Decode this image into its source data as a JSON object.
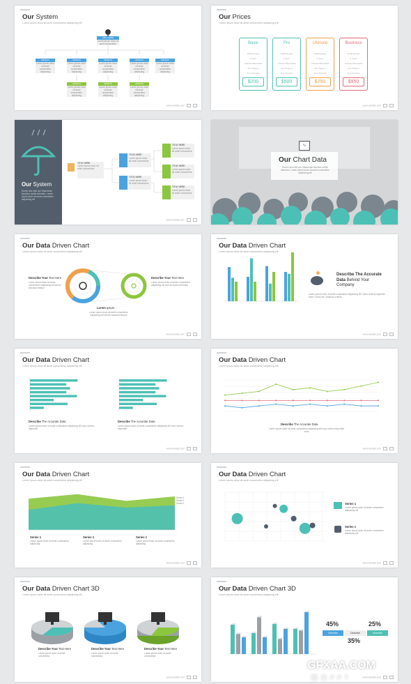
{
  "slides": {
    "s1": {
      "title_bold": "Our",
      "title_light": " System",
      "subtitle": "Lorem ipsum dolor sit amet consectetur adipiscing elit",
      "top_label": "CEO NAME",
      "top_text": "Lorem ipsum dolor sit amet consectetur",
      "mid_label": "DESIGN",
      "bottom_label": "DESIGN",
      "box_text": "Lorem ipsum dolor sit amet consectetur adipiscing"
    },
    "s2": {
      "title_bold": "Our",
      "title_light": " Prices",
      "subtitle": "Lorem ipsum dolor sit amet consectetur adipiscing elit",
      "plans": [
        {
          "name": "Basic",
          "price": "$200",
          "color": "#4dc0b5"
        },
        {
          "name": "Pro",
          "price": "$500",
          "color": "#4dc0b5"
        },
        {
          "name": "Ultimate",
          "price": "$750",
          "color": "#f0a04b"
        },
        {
          "name": "Business",
          "price": "$950",
          "color": "#e06b7b"
        }
      ],
      "features": [
        "10GB Storage",
        "5 Users",
        "Unlimited Bandwidth",
        "24/7 Support",
        "Free Domains"
      ]
    },
    "s3": {
      "title_bold": "Our",
      "title_light": " System",
      "side_text": "Donec sed odio dui. Maecenas faucibus mollis interdum. Lorem ipsum dolor sit amet consectetur adipiscing elit",
      "node_label": "TITLE HERE",
      "node_text": "Lorem ipsum dolor sit amet consectetur"
    },
    "s4": {
      "title_bold": "Our",
      "title_light": " Chart Data",
      "text": "Donec sed odio dui. Maecenas faucibus mollis interdum. Lorem ipsum dolor sit amet consectetur adipiscing elit"
    },
    "s5": {
      "title_bold": "Our Data",
      "title_light": " Driven Chart",
      "subtitle": "Lorem ipsum dolor sit amet consectetur adipiscing elit",
      "left_head_bold": "Describe Your",
      "left_head": " Text Here",
      "right_head_bold": "Describe Your",
      "right_head": " Text Here",
      "center_bold": "Lorem",
      "center": " Ipsum",
      "desc": "Lorem ipsum dolor sit amet consectetur adipiscing elit sed do eiusmod tempor"
    },
    "s6": {
      "title_bold": "Our Data",
      "title_light": " Driven Chart",
      "subtitle": "Lorem ipsum dolor sit amet consectetur adipiscing elit",
      "heading_1": "Describe The Accurate",
      "heading_2_bold": "Data",
      "heading_2": " Behind Your",
      "heading_3": "Company",
      "desc": "Lorem ipsum dolor sit amet consectetur adipiscing elit. Nunc viverra imperdiet enim. Fusce est. Vivamus a tellus."
    },
    "s7": {
      "title_bold": "Our Data",
      "title_light": " Driven Chart",
      "subtitle": "Lorem ipsum dolor sit amet consectetur adipiscing elit",
      "cap_bold": "Describe",
      "cap": " The Accurate Data",
      "desc": "Lorem ipsum dolor sit amet consectetur adipiscing elit nunc viverra imperdiet"
    },
    "s8": {
      "title_bold": "Our Data",
      "title_light": " Driven Chart",
      "subtitle": "Lorem ipsum dolor sit amet consectetur adipiscing elit",
      "cap_bold": "Describe",
      "cap": " The Accurate Data",
      "desc": "Lorem ipsum dolor sit amet consectetur adipiscing elit nunc viverra imperdiet enim"
    },
    "s9": {
      "title_bold": "Our Data",
      "title_light": " Driven Chart",
      "subtitle": "Lorem ipsum dolor sit amet consectetur adipiscing elit",
      "series_label": "Series 1",
      "desc": "Lorem ipsum dolor sit amet consectetur adipiscing"
    },
    "s10": {
      "title_bold": "Our Data",
      "title_light": " Driven Chart",
      "subtitle": "Lorem ipsum dolor sit amet consectetur adipiscing elit",
      "series_label": "Series 1",
      "desc": "Lorem ipsum dolor sit amet consectetur adipiscing elit"
    },
    "s11": {
      "title_bold": "Our Data",
      "title_light": " Driven Chart 3D",
      "subtitle": "Lorem ipsum dolor sit amet consectetur adipiscing elit",
      "cap_bold": "Describe Your",
      "cap": " Text Here",
      "desc": "Lorem ipsum dolor sit amet consectetur"
    },
    "s12": {
      "title_bold": "Our Data",
      "title_light": " Driven Chart 3D",
      "subtitle": "Lorem ipsum dolor sit amet consectetur adipiscing elit",
      "pct_1": "45%",
      "pct_2": "25%",
      "pct_3": "35%",
      "btn_1": "Describe",
      "btn_2": "Describe",
      "btn_3": "Describe"
    }
  },
  "footer": "www.website.com",
  "watermark": "GFXAA.COM",
  "watermark_cn": "图 夹 P P T",
  "colors": {
    "teal": "#4dc0b5",
    "blue": "#4aa3df",
    "green": "#8cc63f",
    "orange": "#f0a04b",
    "dark": "#525e6c"
  },
  "chart_data": [
    {
      "type": "bar",
      "series": [
        {
          "name": "",
          "values": [
            3.5,
            2.5,
            3.6,
            3.0
          ]
        },
        {
          "name": "",
          "values": [
            2.4,
            4.4,
            1.8,
            2.8
          ]
        },
        {
          "name": "",
          "values": [
            2.0,
            2.0,
            3.0,
            5.0
          ]
        }
      ]
    },
    {
      "type": "bar",
      "orientation": "horizontal",
      "series": [
        {
          "name": "",
          "values": [
            7.6,
            5.8,
            6.4,
            5.8,
            7.5,
            3.8,
            6.0,
            2.2
          ]
        }
      ]
    },
    {
      "type": "line",
      "series": [
        {
          "name": "",
          "values": [
            9,
            10,
            11,
            15,
            12,
            13,
            11,
            12,
            14,
            16
          ]
        },
        {
          "name": "",
          "values": [
            6,
            6,
            6,
            6,
            6,
            6,
            6,
            6,
            6,
            6
          ]
        },
        {
          "name": "",
          "values": [
            3,
            2,
            3,
            4,
            3,
            4,
            3,
            4,
            3,
            3
          ]
        }
      ]
    },
    {
      "type": "area",
      "series": [
        {
          "name": "",
          "values": [
            28,
            32,
            26,
            30
          ]
        },
        {
          "name": "",
          "values": [
            18,
            24,
            20,
            22
          ]
        }
      ]
    },
    {
      "type": "scatter",
      "points": [
        [
          -1.8,
          2.3,
          8
        ],
        [
          1.2,
          3.6,
          3
        ],
        [
          1.9,
          3.3,
          6
        ],
        [
          2.7,
          2.3,
          4
        ],
        [
          3.6,
          1.3,
          8
        ],
        [
          4.2,
          1.6,
          4
        ],
        [
          0.5,
          1.5,
          3
        ]
      ]
    }
  ]
}
